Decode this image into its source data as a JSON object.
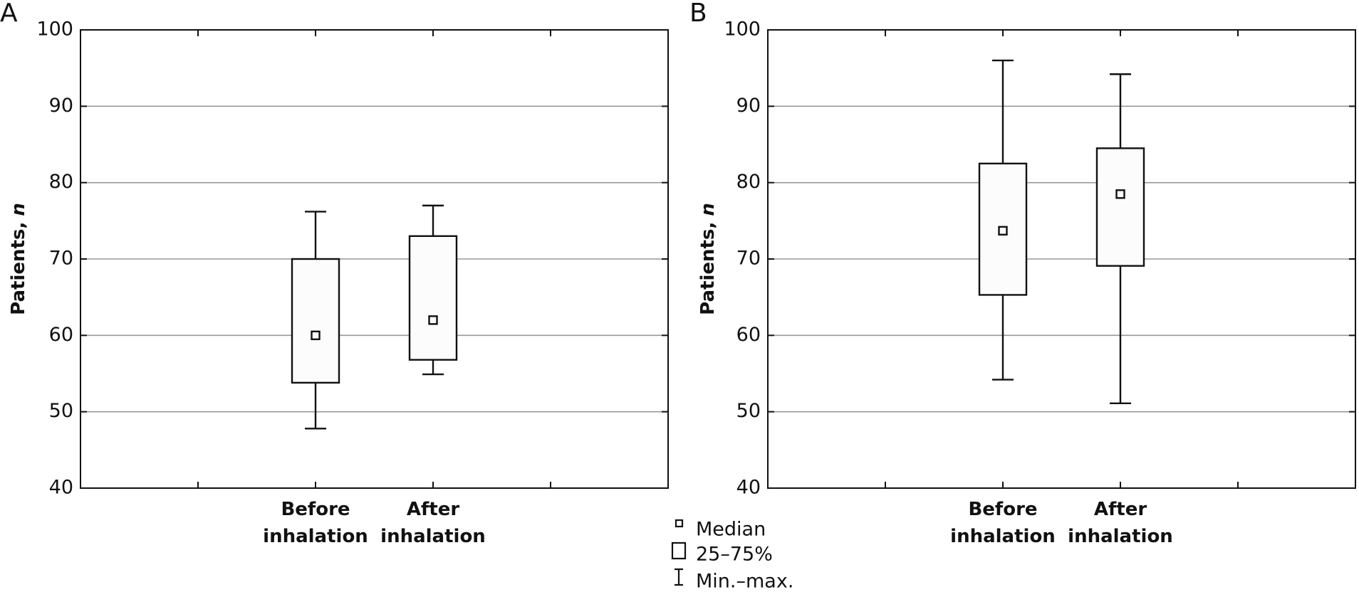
{
  "chart_data": [
    {
      "type": "box",
      "panel": "A",
      "y_label_parts": [
        "Patients,",
        "n"
      ],
      "categories": [
        "Before inhalation",
        "After inhalation"
      ],
      "min": [
        47.8,
        54.9
      ],
      "q1": [
        53.8,
        56.8
      ],
      "median": [
        60,
        62
      ],
      "q3": [
        70,
        73
      ],
      "max": [
        76.2,
        77
      ],
      "ylim": [
        40,
        100
      ],
      "yticks": [
        40,
        50,
        60,
        70,
        80,
        90,
        100
      ],
      "grid": true
    },
    {
      "type": "box",
      "panel": "B",
      "y_label_parts": [
        "Patients,",
        "n"
      ],
      "categories": [
        "Before inhalation",
        "After inhalation"
      ],
      "min": [
        54.2,
        51.1
      ],
      "q1": [
        65.3,
        69.1
      ],
      "median": [
        73.7,
        78.5
      ],
      "q3": [
        82.5,
        84.5
      ],
      "max": [
        96,
        94.2
      ],
      "ylim": [
        40,
        100
      ],
      "yticks": [
        40,
        50,
        60,
        70,
        80,
        90,
        100
      ],
      "grid": true
    }
  ],
  "legend": [
    "Median",
    "25–75%",
    "Min.–max."
  ]
}
